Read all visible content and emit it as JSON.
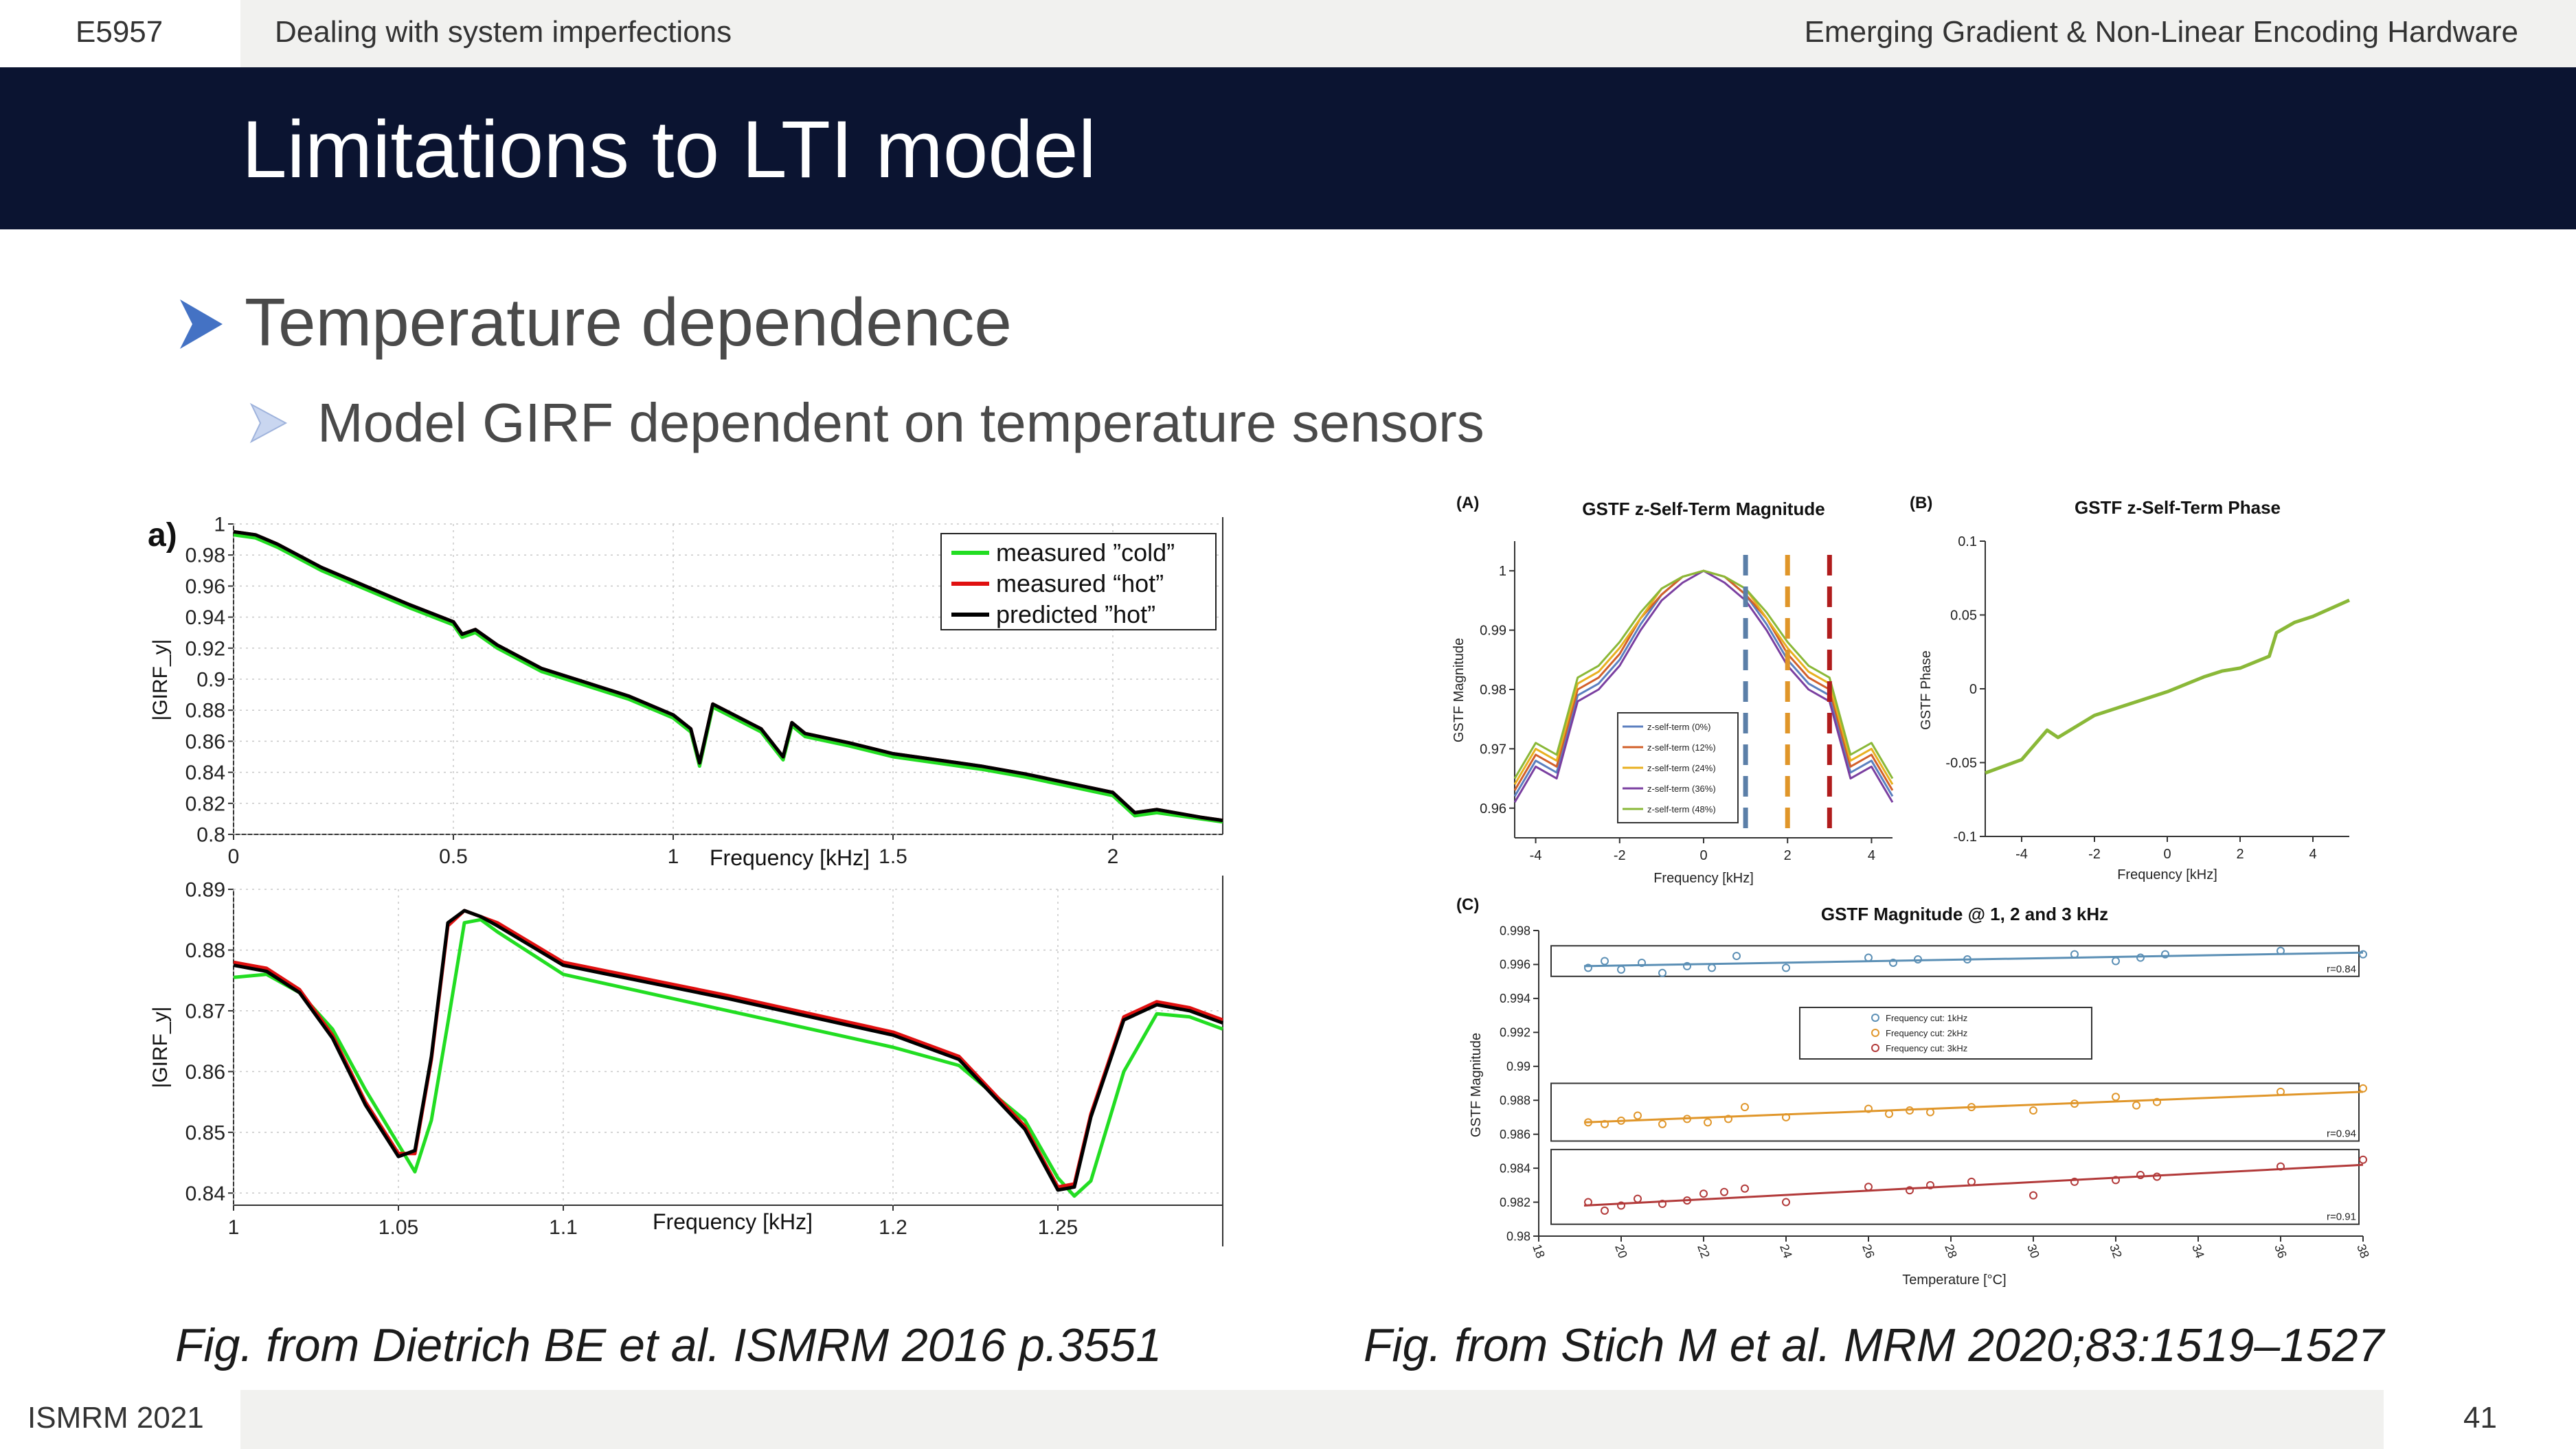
{
  "header": {
    "course_code": "E5957",
    "section": "Dealing with system imperfections",
    "session": "Emerging Gradient & Non-Linear Encoding Hardware"
  },
  "title": "Limitations to LTI model",
  "bullets": {
    "level1": "Temperature dependence",
    "level2": "Model GIRF dependent on temperature sensors"
  },
  "figure_left": {
    "panel_label": "a)",
    "chart_data": [
      {
        "type": "line",
        "title": "",
        "xlabel": "Frequency [kHz]",
        "ylabel": "|GIRF_y|",
        "xlim": [
          0,
          2.25
        ],
        "ylim": [
          0.8,
          1.0
        ],
        "x_ticks": [
          "0",
          "0.5",
          "1",
          "1.5",
          "2"
        ],
        "y_ticks": [
          "1",
          "0.98",
          "0.96",
          "0.94",
          "0.92",
          "0.9",
          "0.88",
          "0.86",
          "0.84",
          "0.82",
          "0.8"
        ],
        "legend": [
          "measured ”cold”",
          "measured “hot”",
          "predicted ”hot”"
        ],
        "x": [
          0,
          0.05,
          0.1,
          0.2,
          0.3,
          0.4,
          0.5,
          0.52,
          0.55,
          0.6,
          0.7,
          0.8,
          0.9,
          1.0,
          1.04,
          1.06,
          1.09,
          1.2,
          1.25,
          1.27,
          1.3,
          1.4,
          1.5,
          1.6,
          1.7,
          1.8,
          1.9,
          2.0,
          2.05,
          2.1,
          2.2,
          2.25
        ],
        "series": [
          {
            "name": "measured ”cold”",
            "color": "#22dd22",
            "values": [
              0.993,
              0.991,
              0.985,
              0.97,
              0.958,
              0.946,
              0.935,
              0.927,
              0.93,
              0.92,
              0.905,
              0.896,
              0.887,
              0.875,
              0.866,
              0.844,
              0.882,
              0.866,
              0.848,
              0.87,
              0.863,
              0.857,
              0.85,
              0.846,
              0.842,
              0.837,
              0.831,
              0.825,
              0.812,
              0.814,
              0.81,
              0.808
            ]
          },
          {
            "name": "measured “hot”",
            "color": "#e01010",
            "values": [
              0.995,
              0.993,
              0.987,
              0.972,
              0.96,
              0.948,
              0.937,
              0.929,
              0.932,
              0.922,
              0.907,
              0.898,
              0.889,
              0.877,
              0.868,
              0.846,
              0.884,
              0.868,
              0.85,
              0.872,
              0.865,
              0.859,
              0.852,
              0.848,
              0.844,
              0.839,
              0.833,
              0.827,
              0.814,
              0.816,
              0.811,
              0.809
            ]
          },
          {
            "name": "predicted ”hot”",
            "color": "#000000",
            "values": [
              0.995,
              0.993,
              0.987,
              0.972,
              0.96,
              0.948,
              0.937,
              0.929,
              0.932,
              0.922,
              0.907,
              0.898,
              0.889,
              0.877,
              0.868,
              0.846,
              0.884,
              0.868,
              0.85,
              0.872,
              0.865,
              0.859,
              0.852,
              0.848,
              0.844,
              0.839,
              0.833,
              0.827,
              0.814,
              0.816,
              0.811,
              0.809
            ]
          }
        ]
      },
      {
        "type": "line",
        "title": "",
        "xlabel": "Frequency [kHz]",
        "ylabel": "|GIRF_y|",
        "xlim": [
          1.0,
          1.3
        ],
        "ylim": [
          0.838,
          0.89
        ],
        "x_ticks": [
          "1",
          "1.05",
          "1.1",
          "1.2",
          "1.25"
        ],
        "y_ticks": [
          "0.89",
          "0.88",
          "0.87",
          "0.86",
          "0.85",
          "0.84"
        ],
        "x": [
          1.0,
          1.01,
          1.02,
          1.03,
          1.04,
          1.05,
          1.055,
          1.06,
          1.065,
          1.07,
          1.075,
          1.08,
          1.1,
          1.15,
          1.2,
          1.22,
          1.24,
          1.25,
          1.255,
          1.26,
          1.27,
          1.28,
          1.29,
          1.3
        ],
        "series": [
          {
            "name": "measured ”cold”",
            "color": "#22dd22",
            "values": [
              0.8755,
              0.876,
              0.873,
              0.867,
              0.857,
              0.848,
              0.8435,
              0.852,
              0.868,
              0.8845,
              0.885,
              0.883,
              0.876,
              0.87,
              0.864,
              0.861,
              0.852,
              0.8425,
              0.8395,
              0.842,
              0.86,
              0.8695,
              0.869,
              0.867
            ]
          },
          {
            "name": "measured “hot”",
            "color": "#e01010",
            "values": [
              0.878,
              0.877,
              0.8735,
              0.866,
              0.855,
              0.8465,
              0.8465,
              0.862,
              0.884,
              0.8865,
              0.8855,
              0.8845,
              0.878,
              0.8725,
              0.8665,
              0.8625,
              0.851,
              0.841,
              0.8415,
              0.853,
              0.869,
              0.8715,
              0.8705,
              0.8685
            ]
          },
          {
            "name": "predicted ”hot”",
            "color": "#000000",
            "values": [
              0.8775,
              0.8765,
              0.873,
              0.8655,
              0.8545,
              0.846,
              0.847,
              0.8625,
              0.8845,
              0.8865,
              0.8855,
              0.884,
              0.8775,
              0.872,
              0.866,
              0.862,
              0.8505,
              0.8405,
              0.841,
              0.8525,
              0.8685,
              0.871,
              0.87,
              0.868
            ]
          }
        ]
      }
    ]
  },
  "figure_right": {
    "chart_data": [
      {
        "panel": "(A)",
        "type": "line",
        "title": "GSTF z-Self-Term Magnitude",
        "xlabel": "Frequency [kHz]",
        "ylabel": "GSTF Magnitude",
        "xlim": [
          -4.5,
          4.5
        ],
        "ylim": [
          0.955,
          1.005
        ],
        "x_ticks": [
          "-4",
          "-2",
          "0",
          "2",
          "4"
        ],
        "y_ticks": [
          "1",
          "0.99",
          "0.98",
          "0.97",
          "0.96"
        ],
        "legend": [
          "z-self-term (0%)",
          "z-self-term (12%)",
          "z-self-term (24%)",
          "z-self-term (36%)",
          "z-self-term (48%)"
        ],
        "vertical_lines_khz": [
          1,
          2,
          3
        ],
        "x": [
          -4.5,
          -4,
          -3.5,
          -3,
          -2.5,
          -2,
          -1.5,
          -1,
          -0.5,
          0,
          0.5,
          1,
          1.5,
          2,
          2.5,
          3,
          3.5,
          4,
          4.5
        ],
        "series": [
          {
            "name": "z-self-term (0%)",
            "color": "#5b7fbf",
            "values": [
              0.962,
              0.968,
              0.966,
              0.979,
              0.981,
              0.985,
              0.991,
              0.996,
              0.999,
              1.0,
              0.999,
              0.996,
              0.991,
              0.985,
              0.981,
              0.979,
              0.966,
              0.968,
              0.962
            ]
          },
          {
            "name": "z-self-term (12%)",
            "color": "#d2602a",
            "values": [
              0.963,
              0.969,
              0.967,
              0.98,
              0.982,
              0.986,
              0.992,
              0.996,
              0.999,
              1.0,
              0.999,
              0.996,
              0.992,
              0.986,
              0.982,
              0.98,
              0.967,
              0.969,
              0.963
            ]
          },
          {
            "name": "z-self-term (24%)",
            "color": "#e8b020",
            "values": [
              0.964,
              0.97,
              0.968,
              0.981,
              0.983,
              0.987,
              0.992,
              0.997,
              0.999,
              1.0,
              0.999,
              0.997,
              0.992,
              0.987,
              0.983,
              0.981,
              0.968,
              0.97,
              0.964
            ]
          },
          {
            "name": "z-self-term (36%)",
            "color": "#7a3fa0",
            "values": [
              0.961,
              0.967,
              0.965,
              0.978,
              0.98,
              0.984,
              0.99,
              0.995,
              0.998,
              1.0,
              0.998,
              0.995,
              0.99,
              0.984,
              0.98,
              0.978,
              0.965,
              0.967,
              0.961
            ]
          },
          {
            "name": "z-self-term (48%)",
            "color": "#8ab838",
            "values": [
              0.965,
              0.971,
              0.969,
              0.982,
              0.984,
              0.988,
              0.993,
              0.997,
              0.999,
              1.0,
              0.999,
              0.997,
              0.993,
              0.988,
              0.984,
              0.982,
              0.969,
              0.971,
              0.965
            ]
          }
        ]
      },
      {
        "panel": "(B)",
        "type": "line",
        "title": "GSTF z-Self-Term Phase",
        "xlabel": "Frequency [kHz]",
        "ylabel": "GSTF Phase",
        "xlim": [
          -5,
          5
        ],
        "ylim": [
          -0.1,
          0.1
        ],
        "x_ticks": [
          "-4",
          "-2",
          "0",
          "2",
          "4"
        ],
        "y_ticks": [
          "0.1",
          "0.05",
          "0",
          "-0.05",
          "-0.1"
        ],
        "x": [
          -5,
          -4,
          -3.3,
          -3,
          -2,
          -1,
          0,
          1,
          1.5,
          2,
          2.8,
          3,
          3.5,
          4,
          5
        ],
        "series": [
          {
            "name": "phase",
            "color": "#8ab838",
            "values": [
              -0.057,
              -0.048,
              -0.028,
              -0.033,
              -0.018,
              -0.01,
              -0.002,
              0.008,
              0.012,
              0.014,
              0.022,
              0.038,
              0.045,
              0.049,
              0.06
            ]
          }
        ]
      },
      {
        "panel": "(C)",
        "type": "scatter",
        "title": "GSTF Magnitude @ 1, 2 and 3 kHz",
        "xlabel": "Temperature [°C]",
        "ylabel": "GSTF Magnitude",
        "xlim": [
          18,
          38
        ],
        "ylim": [
          0.98,
          0.998
        ],
        "x_ticks": [
          "18",
          "20",
          "22",
          "24",
          "26",
          "28",
          "30",
          "32",
          "34",
          "36",
          "38"
        ],
        "y_ticks": [
          "0.998",
          "0.996",
          "0.994",
          "0.992",
          "0.99",
          "0.988",
          "0.986",
          "0.984",
          "0.982",
          "0.98"
        ],
        "legend": [
          "Frequency cut: 1kHz",
          "Frequency cut: 2kHz",
          "Frequency cut: 3kHz"
        ],
        "fit_labels": [
          "r=0.84",
          "r=0.94",
          "r=0.91"
        ],
        "series": [
          {
            "name": "Frequency cut: 1kHz",
            "color": "#5b8fb5",
            "x": [
              19.2,
              19.6,
              20,
              20.5,
              21,
              21.6,
              22.2,
              22.8,
              24,
              26,
              26.6,
              27.2,
              28.4,
              31,
              32,
              32.6,
              33.2,
              36,
              38
            ],
            "values": [
              0.9958,
              0.9962,
              0.9957,
              0.9961,
              0.9955,
              0.9959,
              0.9958,
              0.9965,
              0.9958,
              0.9964,
              0.9961,
              0.9963,
              0.9963,
              0.9966,
              0.9962,
              0.9964,
              0.9966,
              0.9968,
              0.9966
            ],
            "fit": [
              0.9959,
              0.9967
            ]
          },
          {
            "name": "Frequency cut: 2kHz",
            "color": "#e0962a",
            "x": [
              19.2,
              19.6,
              20,
              20.4,
              21,
              21.6,
              22.1,
              22.6,
              23,
              24,
              26,
              26.5,
              27,
              27.5,
              28.5,
              30,
              31,
              32,
              32.5,
              33,
              36,
              38
            ],
            "values": [
              0.9867,
              0.9866,
              0.9868,
              0.9871,
              0.9866,
              0.9869,
              0.9867,
              0.9869,
              0.9876,
              0.987,
              0.9875,
              0.9872,
              0.9874,
              0.9873,
              0.9876,
              0.9874,
              0.9878,
              0.9882,
              0.9877,
              0.9879,
              0.9885,
              0.9887
            ],
            "fit": [
              0.9867,
              0.9885
            ]
          },
          {
            "name": "Frequency cut: 3kHz",
            "color": "#b23a3a",
            "x": [
              19.2,
              19.6,
              20,
              20.4,
              21,
              21.6,
              22,
              22.5,
              23,
              24,
              26,
              27,
              27.5,
              28.5,
              30,
              31,
              32,
              32.6,
              33,
              36,
              38
            ],
            "values": [
              0.982,
              0.9815,
              0.9818,
              0.9822,
              0.9819,
              0.9821,
              0.9825,
              0.9826,
              0.9828,
              0.982,
              0.9829,
              0.9827,
              0.983,
              0.9832,
              0.9824,
              0.9832,
              0.9833,
              0.9836,
              0.9835,
              0.9841,
              0.9845
            ],
            "fit": [
              0.9818,
              0.9842
            ]
          }
        ]
      }
    ]
  },
  "captions": {
    "left": "Fig. from Dietrich BE et al. ISMRM 2016 p.3551",
    "right": "Fig. from Stich M et al. MRM 2020;83:1519–1527"
  },
  "footer": {
    "conference": "ISMRM 2021",
    "page_number": "41"
  }
}
